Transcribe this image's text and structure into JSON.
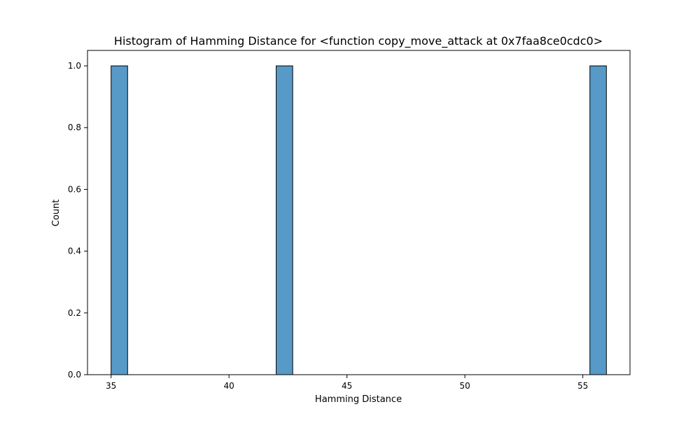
{
  "chart_data": {
    "type": "bar",
    "title": "Histogram of Hamming Distance for <function copy_move_attack at 0x7faa8ce0cdc0>",
    "xlabel": "Hamming Distance",
    "ylabel": "Count",
    "xlim": [
      34,
      57
    ],
    "ylim": [
      0,
      1.05
    ],
    "x_ticks": [
      35,
      40,
      45,
      50,
      55
    ],
    "y_ticks": [
      0.0,
      0.2,
      0.4,
      0.6,
      0.8,
      1.0
    ],
    "x_tick_labels": [
      "35",
      "40",
      "45",
      "50",
      "55"
    ],
    "y_tick_labels": [
      "0.0",
      "0.2",
      "0.4",
      "0.6",
      "0.8",
      "1.0"
    ],
    "bins": [
      {
        "x_start": 35.0,
        "x_end": 35.7,
        "count": 1
      },
      {
        "x_start": 42.0,
        "x_end": 42.7,
        "count": 1
      },
      {
        "x_start": 55.3,
        "x_end": 56.0,
        "count": 1
      }
    ],
    "bar_color": "#5799c7",
    "bar_edge_color": "#000000",
    "grid": false,
    "legend": "none"
  }
}
